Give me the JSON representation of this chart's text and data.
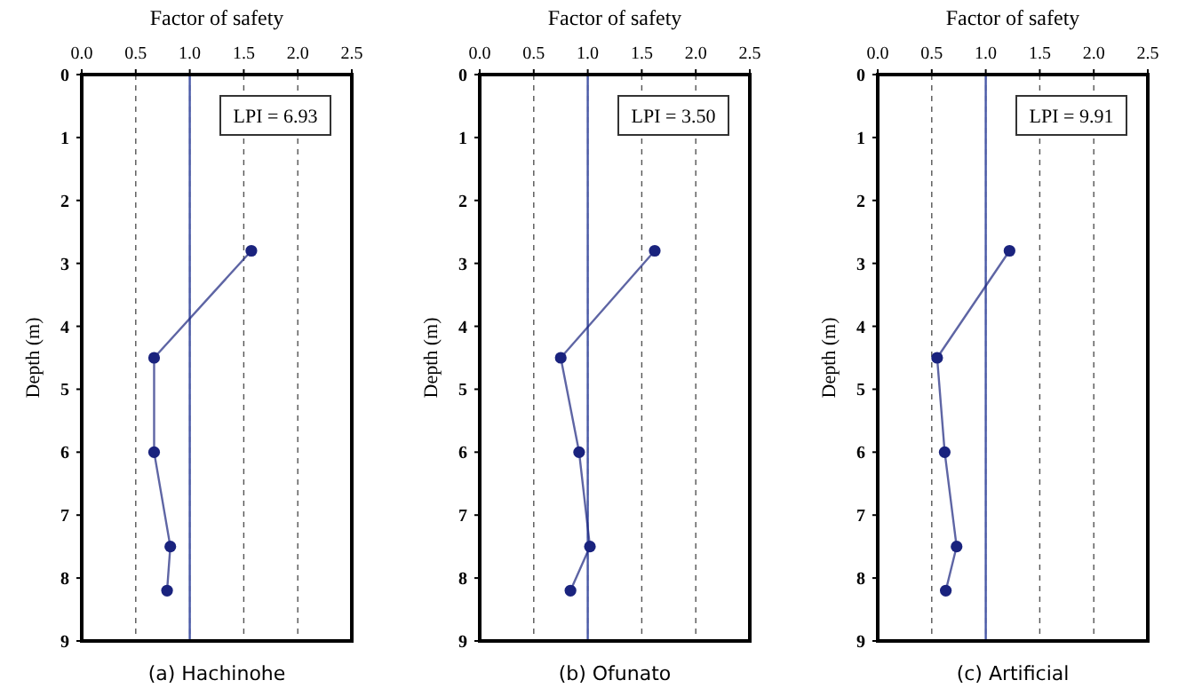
{
  "chart_data": [
    {
      "type": "line",
      "title": "(a) Hachinohe",
      "xlabel": "Factor of safety",
      "ylabel": "Depth (m)",
      "xlim": [
        0,
        2.5
      ],
      "xticks": [
        {
          "value": 0,
          "label": "0.0"
        },
        {
          "value": 0.5,
          "label": "0.5"
        },
        {
          "value": 1,
          "label": "1.0"
        },
        {
          "value": 1.5,
          "label": "1.5"
        },
        {
          "value": 2,
          "label": "2.0"
        },
        {
          "value": 2.5,
          "label": "2.5"
        }
      ],
      "ylim": [
        9,
        0
      ],
      "yticks": [
        0,
        1,
        2,
        3,
        4,
        5,
        6,
        7,
        8,
        9
      ],
      "grid": "x",
      "marker": "circle",
      "line_style": "solid",
      "ref_lines": [
        {
          "axis": "x",
          "value": 1,
          "color": "#4a5aa8"
        }
      ],
      "annotations": [
        "LPI = 6.93"
      ],
      "series": [
        {
          "color": "#1a237e",
          "x": [
            1.57,
            0.67,
            0.67,
            0.82,
            0.79
          ],
          "values": [
            2.8,
            4.5,
            6.0,
            7.5,
            8.2
          ]
        }
      ]
    },
    {
      "type": "line",
      "title": "(b) Ofunato",
      "xlabel": "Factor of safety",
      "ylabel": "Depth (m)",
      "xlim": [
        0,
        2.5
      ],
      "xticks": [
        {
          "value": 0,
          "label": "0.0"
        },
        {
          "value": 0.5,
          "label": "0.5"
        },
        {
          "value": 1,
          "label": "1.0"
        },
        {
          "value": 1.5,
          "label": "1.5"
        },
        {
          "value": 2,
          "label": "2.0"
        },
        {
          "value": 2.5,
          "label": "2.5"
        }
      ],
      "ylim": [
        9,
        0
      ],
      "yticks": [
        0,
        1,
        2,
        3,
        4,
        5,
        6,
        7,
        8,
        9
      ],
      "grid": "x",
      "marker": "circle",
      "line_style": "solid",
      "ref_lines": [
        {
          "axis": "x",
          "value": 1,
          "color": "#4a5aa8"
        }
      ],
      "annotations": [
        "LPI = 3.50"
      ],
      "series": [
        {
          "color": "#1a237e",
          "x": [
            1.62,
            0.75,
            0.92,
            1.02,
            0.84
          ],
          "values": [
            2.8,
            4.5,
            6.0,
            7.5,
            8.2
          ]
        }
      ]
    },
    {
      "type": "line",
      "title": "(c) Artificial",
      "xlabel": "Factor of safety",
      "ylabel": "Depth (m)",
      "xlim": [
        0,
        2.5
      ],
      "xticks": [
        {
          "value": 0,
          "label": "0.0"
        },
        {
          "value": 0.5,
          "label": "0.5"
        },
        {
          "value": 1,
          "label": "1.0"
        },
        {
          "value": 1.5,
          "label": "1.5"
        },
        {
          "value": 2,
          "label": "2.0"
        },
        {
          "value": 2.5,
          "label": "2.5"
        }
      ],
      "ylim": [
        9,
        0
      ],
      "yticks": [
        0,
        1,
        2,
        3,
        4,
        5,
        6,
        7,
        8,
        9
      ],
      "grid": "x",
      "marker": "circle",
      "line_style": "solid",
      "ref_lines": [
        {
          "axis": "x",
          "value": 1,
          "color": "#4a5aa8"
        }
      ],
      "annotations": [
        "LPI = 9.91"
      ],
      "series": [
        {
          "color": "#1a237e",
          "x": [
            1.22,
            0.55,
            0.62,
            0.73,
            0.63
          ],
          "values": [
            2.8,
            4.5,
            6.0,
            7.5,
            8.2
          ]
        }
      ]
    }
  ]
}
